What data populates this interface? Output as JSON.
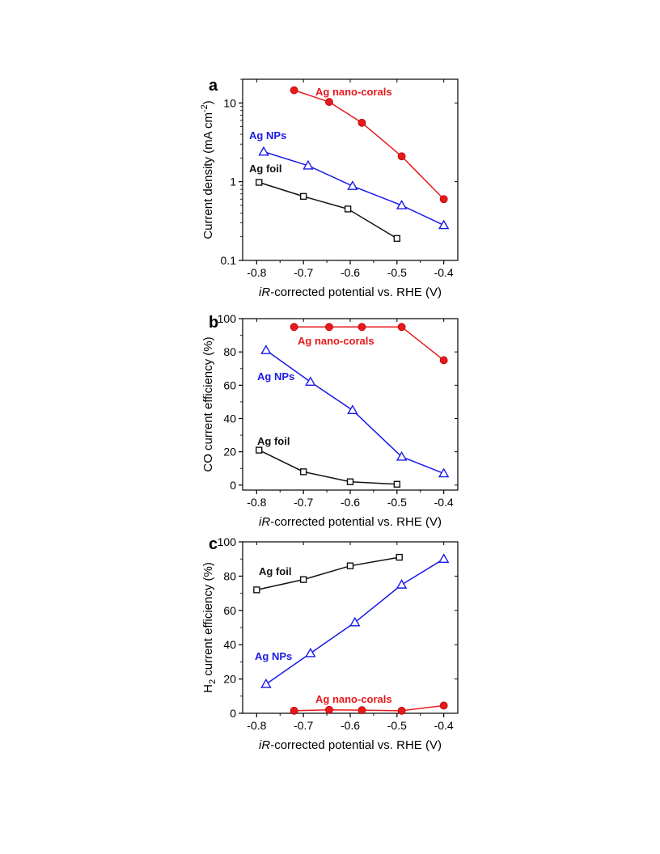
{
  "chart_data": [
    {
      "type": "line",
      "panel_label": "a",
      "xlabel_italic": "iR",
      "xlabel_rest": "-corrected potential vs. RHE (V)",
      "ylabel": "Current density (mA cm",
      "ylabel_sup": "-2",
      "ylabel_close": ")",
      "yscale": "log",
      "xlim": [
        -0.83,
        -0.37
      ],
      "ylim": [
        0.1,
        20
      ],
      "xticks": [
        -0.8,
        -0.7,
        -0.6,
        -0.5,
        -0.4
      ],
      "xtick_labels": [
        "-0.8",
        "-0.7",
        "-0.6",
        "-0.5",
        "-0.4"
      ],
      "yticks": [
        0.1,
        1,
        10
      ],
      "ytick_labels": [
        "0.1",
        "1",
        "10"
      ],
      "series": [
        {
          "name": "Ag nano-corals",
          "color": "#e8191c",
          "marker": "circle",
          "x": [
            -0.72,
            -0.645,
            -0.575,
            -0.49,
            -0.4
          ],
          "y": [
            14.5,
            10.3,
            5.6,
            2.1,
            0.6
          ]
        },
        {
          "name": "Ag NPs",
          "color": "#1a1ae6",
          "marker": "triangle",
          "x": [
            -0.785,
            -0.69,
            -0.595,
            -0.49,
            -0.4
          ],
          "y": [
            2.4,
            1.6,
            0.88,
            0.5,
            0.28
          ]
        },
        {
          "name": "Ag foil",
          "color": "#111111",
          "marker": "square",
          "x": [
            -0.795,
            -0.7,
            -0.605,
            -0.5
          ],
          "y": [
            0.98,
            0.65,
            0.45,
            0.19
          ]
        }
      ]
    },
    {
      "type": "line",
      "panel_label": "b",
      "xlabel_italic": "iR",
      "xlabel_rest": "-corrected potential vs. RHE (V)",
      "ylabel": "CO current efficiency (%)",
      "ylabel_sub": "",
      "yscale": "linear",
      "xlim": [
        -0.83,
        -0.37
      ],
      "ylim": [
        -3,
        100
      ],
      "xticks": [
        -0.8,
        -0.7,
        -0.6,
        -0.5,
        -0.4
      ],
      "xtick_labels": [
        "-0.8",
        "-0.7",
        "-0.6",
        "-0.5",
        "-0.4"
      ],
      "yticks": [
        0,
        20,
        40,
        60,
        80,
        100
      ],
      "ytick_labels": [
        "0",
        "20",
        "40",
        "60",
        "80",
        "100"
      ],
      "series": [
        {
          "name": "Ag nano-corals",
          "color": "#e8191c",
          "marker": "circle",
          "x": [
            -0.72,
            -0.645,
            -0.575,
            -0.49,
            -0.4
          ],
          "y": [
            95,
            95,
            95,
            95,
            75
          ]
        },
        {
          "name": "Ag NPs",
          "color": "#1a1ae6",
          "marker": "triangle",
          "x": [
            -0.78,
            -0.685,
            -0.595,
            -0.49,
            -0.4
          ],
          "y": [
            81,
            62,
            45,
            17,
            7
          ]
        },
        {
          "name": "Ag foil",
          "color": "#111111",
          "marker": "square",
          "x": [
            -0.795,
            -0.7,
            -0.6,
            -0.5
          ],
          "y": [
            21,
            8,
            2,
            0.5
          ]
        }
      ]
    },
    {
      "type": "line",
      "panel_label": "c",
      "xlabel_italic": "iR",
      "xlabel_rest": "-corrected potential vs. RHE (V)",
      "ylabel": "H",
      "ylabel_sub": "2",
      "ylabel_rest": " current efficiency (%)",
      "yscale": "linear",
      "xlim": [
        -0.83,
        -0.37
      ],
      "ylim": [
        0,
        100
      ],
      "xticks": [
        -0.8,
        -0.7,
        -0.6,
        -0.5,
        -0.4
      ],
      "xtick_labels": [
        "-0.8",
        "-0.7",
        "-0.6",
        "-0.5",
        "-0.4"
      ],
      "yticks": [
        0,
        20,
        40,
        60,
        80,
        100
      ],
      "ytick_labels": [
        "0",
        "20",
        "40",
        "60",
        "80",
        "100"
      ],
      "series": [
        {
          "name": "Ag foil",
          "color": "#111111",
          "marker": "square",
          "x": [
            -0.8,
            -0.7,
            -0.6,
            -0.495
          ],
          "y": [
            72,
            78,
            86,
            91
          ]
        },
        {
          "name": "Ag NPs",
          "color": "#1a1ae6",
          "marker": "triangle",
          "x": [
            -0.78,
            -0.685,
            -0.59,
            -0.49,
            -0.4
          ],
          "y": [
            17,
            35,
            53,
            75,
            90
          ]
        },
        {
          "name": "Ag nano-corals",
          "color": "#e8191c",
          "marker": "circle",
          "x": [
            -0.72,
            -0.645,
            -0.575,
            -0.49,
            -0.4
          ],
          "y": [
            1.5,
            2,
            1.8,
            1.5,
            4.5
          ]
        }
      ]
    }
  ]
}
